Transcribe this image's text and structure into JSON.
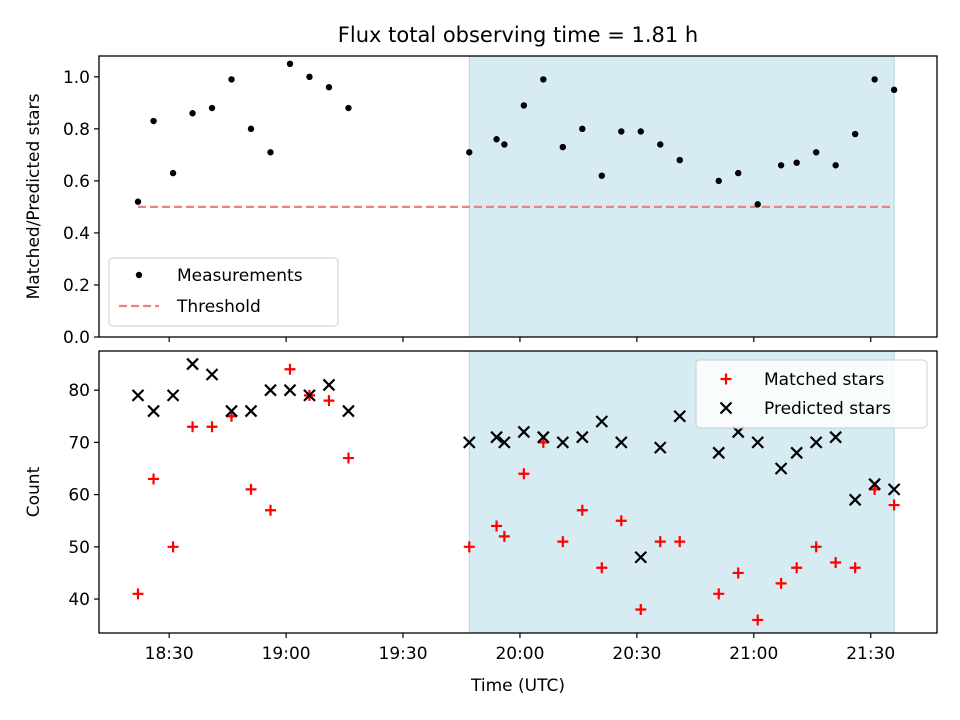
{
  "figure_title": "Flux total observing time = 1.81 h",
  "colors": {
    "measurement": "#000000",
    "threshold": "#f08080",
    "highlight": "#add8e6",
    "matched": "#ff0000",
    "predicted": "#000000"
  },
  "chart_data": [
    {
      "type": "scatter",
      "title": "Flux total observing time = 1.81 h",
      "xlabel": "",
      "ylabel": "Matched/Predicted stars",
      "xlim": [
        "18:12",
        "21:47"
      ],
      "ylim": [
        0,
        1.08
      ],
      "yticks": [
        "0.0",
        "0.2",
        "0.4",
        "0.6",
        "0.8",
        "1.0"
      ],
      "xtick_labels_shown": false,
      "legend": {
        "position": "lower-left",
        "entries": [
          "Measurements",
          "Threshold"
        ]
      },
      "shaded_interval": [
        "19:47",
        "21:36"
      ],
      "threshold": {
        "y": 0.5,
        "x_start": "18:22",
        "x_end": "21:36",
        "style": "dashed"
      },
      "series": [
        {
          "name": "Measurements",
          "marker": "dot",
          "points": [
            [
              "18:22",
              0.52
            ],
            [
              "18:26",
              0.83
            ],
            [
              "18:31",
              0.63
            ],
            [
              "18:36",
              0.86
            ],
            [
              "18:41",
              0.88
            ],
            [
              "18:46",
              0.99
            ],
            [
              "18:51",
              0.8
            ],
            [
              "18:56",
              0.71
            ],
            [
              "19:01",
              1.05
            ],
            [
              "19:06",
              1.0
            ],
            [
              "19:11",
              0.96
            ],
            [
              "19:16",
              0.88
            ],
            [
              "19:47",
              0.71
            ],
            [
              "19:54",
              0.76
            ],
            [
              "19:56",
              0.74
            ],
            [
              "20:01",
              0.89
            ],
            [
              "20:06",
              0.99
            ],
            [
              "20:11",
              0.73
            ],
            [
              "20:16",
              0.8
            ],
            [
              "20:21",
              0.62
            ],
            [
              "20:26",
              0.79
            ],
            [
              "20:31",
              0.79
            ],
            [
              "20:36",
              0.74
            ],
            [
              "20:41",
              0.68
            ],
            [
              "20:51",
              0.6
            ],
            [
              "20:56",
              0.63
            ],
            [
              "21:01",
              0.51
            ],
            [
              "21:07",
              0.66
            ],
            [
              "21:11",
              0.67
            ],
            [
              "21:16",
              0.71
            ],
            [
              "21:21",
              0.66
            ],
            [
              "21:26",
              0.78
            ],
            [
              "21:31",
              0.99
            ],
            [
              "21:36",
              0.95
            ]
          ]
        }
      ]
    },
    {
      "type": "scatter",
      "title": "",
      "xlabel": "Time (UTC)",
      "ylabel": "Count",
      "xlim": [
        "18:12",
        "21:47"
      ],
      "ylim": [
        33.5,
        87.5
      ],
      "yticks": [
        "40",
        "50",
        "60",
        "70",
        "80"
      ],
      "xticks": [
        "18:30",
        "19:00",
        "19:30",
        "20:00",
        "20:30",
        "21:00",
        "21:30"
      ],
      "legend": {
        "position": "top-right",
        "entries": [
          "Matched stars",
          "Predicted stars"
        ]
      },
      "shaded_interval": [
        "19:47",
        "21:36"
      ],
      "series": [
        {
          "name": "Matched stars",
          "marker": "plus",
          "points": [
            [
              "18:22",
              41
            ],
            [
              "18:26",
              63
            ],
            [
              "18:31",
              50
            ],
            [
              "18:36",
              73
            ],
            [
              "18:41",
              73
            ],
            [
              "18:46",
              75
            ],
            [
              "18:51",
              61
            ],
            [
              "18:56",
              57
            ],
            [
              "19:01",
              84
            ],
            [
              "19:06",
              79
            ],
            [
              "19:11",
              78
            ],
            [
              "19:16",
              67
            ],
            [
              "19:47",
              50
            ],
            [
              "19:54",
              54
            ],
            [
              "19:56",
              52
            ],
            [
              "20:01",
              64
            ],
            [
              "20:06",
              70
            ],
            [
              "20:11",
              51
            ],
            [
              "20:16",
              57
            ],
            [
              "20:21",
              46
            ],
            [
              "20:26",
              55
            ],
            [
              "20:31",
              38
            ],
            [
              "20:36",
              51
            ],
            [
              "20:41",
              51
            ],
            [
              "20:51",
              41
            ],
            [
              "20:56",
              45
            ],
            [
              "21:01",
              36
            ],
            [
              "21:07",
              43
            ],
            [
              "21:11",
              46
            ],
            [
              "21:16",
              50
            ],
            [
              "21:21",
              47
            ],
            [
              "21:26",
              46
            ],
            [
              "21:31",
              61
            ],
            [
              "21:36",
              58
            ]
          ]
        },
        {
          "name": "Predicted stars",
          "marker": "x",
          "points": [
            [
              "18:22",
              79
            ],
            [
              "18:26",
              76
            ],
            [
              "18:31",
              79
            ],
            [
              "18:36",
              85
            ],
            [
              "18:41",
              83
            ],
            [
              "18:46",
              76
            ],
            [
              "18:51",
              76
            ],
            [
              "18:56",
              80
            ],
            [
              "19:01",
              80
            ],
            [
              "19:06",
              79
            ],
            [
              "19:11",
              81
            ],
            [
              "19:16",
              76
            ],
            [
              "19:47",
              70
            ],
            [
              "19:54",
              71
            ],
            [
              "19:56",
              70
            ],
            [
              "20:01",
              72
            ],
            [
              "20:06",
              71
            ],
            [
              "20:11",
              70
            ],
            [
              "20:16",
              71
            ],
            [
              "20:21",
              74
            ],
            [
              "20:26",
              70
            ],
            [
              "20:31",
              48
            ],
            [
              "20:36",
              69
            ],
            [
              "20:41",
              75
            ],
            [
              "20:51",
              68
            ],
            [
              "20:56",
              72
            ],
            [
              "21:01",
              70
            ],
            [
              "21:07",
              65
            ],
            [
              "21:11",
              68
            ],
            [
              "21:16",
              70
            ],
            [
              "21:21",
              71
            ],
            [
              "21:26",
              59
            ],
            [
              "21:31",
              62
            ],
            [
              "21:36",
              61
            ]
          ]
        }
      ]
    }
  ]
}
